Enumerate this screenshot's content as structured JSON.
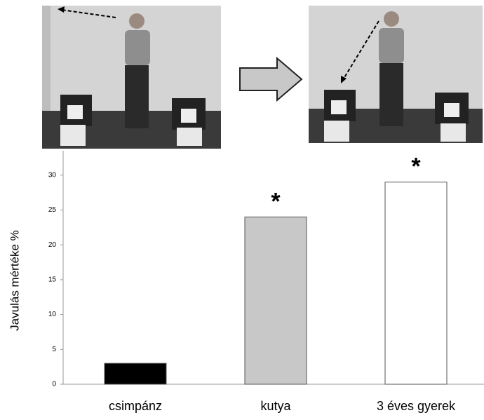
{
  "chart_data": {
    "type": "bar",
    "ylabel": "Javulás mértéke %",
    "categories": [
      "csimpánz",
      "kutya",
      "3 éves gyerek"
    ],
    "values": [
      3,
      24,
      29
    ],
    "colors": [
      "#000000",
      "#c8c8c8",
      "#ffffff"
    ],
    "significance": [
      null,
      "*",
      "*"
    ],
    "ylim": [
      0,
      33.5
    ],
    "yticks": [
      0,
      5,
      10,
      15,
      20,
      25,
      30
    ]
  }
}
